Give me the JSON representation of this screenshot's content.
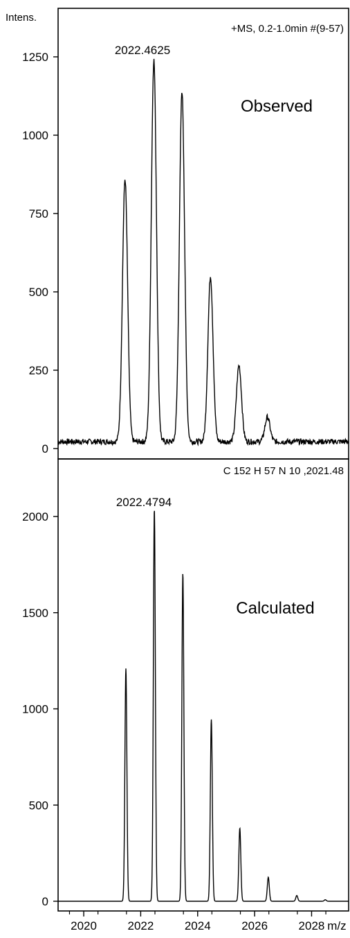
{
  "chart_data": [
    {
      "type": "line",
      "panel": "top",
      "ylabel": "Intens.",
      "header": "+MS, 0.2-1.0min #(9-57)",
      "peak_label": "2022.4625",
      "title": "Observed",
      "ylim": [
        0,
        1370
      ],
      "yticks": [
        "0",
        "250",
        "500",
        "750",
        "1000",
        "1250"
      ],
      "ytick_values": [
        0,
        250,
        500,
        750,
        1000,
        1250
      ],
      "series": [
        {
          "peaks": [
            {
              "x": 2021.45,
              "y": 860
            },
            {
              "x": 2022.4625,
              "y": 1240
            },
            {
              "x": 2023.45,
              "y": 1140
            },
            {
              "x": 2024.45,
              "y": 550
            },
            {
              "x": 2025.45,
              "y": 265
            },
            {
              "x": 2026.45,
              "y": 100
            }
          ],
          "baseline": 22
        }
      ]
    },
    {
      "type": "line",
      "panel": "bottom",
      "header": "C 152 H 57 N 10  ,2021.48",
      "peak_label": "2022.4794",
      "title": "Calculated",
      "ylim": [
        0,
        2240
      ],
      "yticks": [
        "0",
        "500",
        "1000",
        "1500",
        "2000"
      ],
      "ytick_values": [
        0,
        500,
        1000,
        1500,
        2000
      ],
      "xlabel": "m/z",
      "xticks": [
        "2020",
        "2022",
        "2024",
        "2026",
        "2028"
      ],
      "xtick_values": [
        2020,
        2022,
        2024,
        2026,
        2028
      ],
      "xlim": [
        2019.1,
        2029.3
      ],
      "series": [
        {
          "peaks": [
            {
              "x": 2021.48,
              "y": 1210
            },
            {
              "x": 2022.4794,
              "y": 2040
            },
            {
              "x": 2023.48,
              "y": 1705
            },
            {
              "x": 2024.48,
              "y": 945
            },
            {
              "x": 2025.48,
              "y": 380
            },
            {
              "x": 2026.48,
              "y": 125
            },
            {
              "x": 2027.48,
              "y": 30
            },
            {
              "x": 2028.48,
              "y": 8
            }
          ],
          "baseline": 0
        }
      ]
    }
  ]
}
